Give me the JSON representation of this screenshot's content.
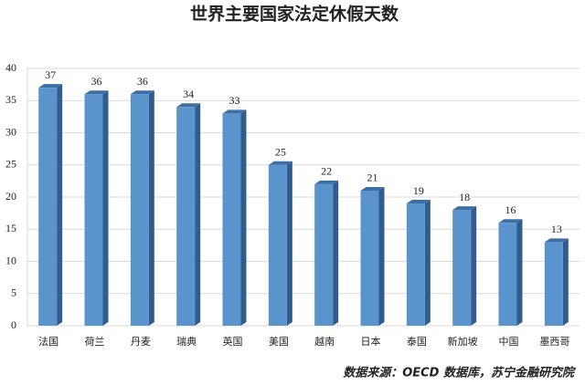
{
  "chart_data": {
    "type": "bar",
    "title": "世界主要国家法定休假天数",
    "source": "数据来源：OECD 数据库，苏宁金融研究院",
    "categories": [
      "法国",
      "荷兰",
      "丹麦",
      "瑞典",
      "英国",
      "美国",
      "越南",
      "日本",
      "泰国",
      "新加坡",
      "中国",
      "墨西哥"
    ],
    "values": [
      37,
      36,
      36,
      34,
      33,
      25,
      22,
      21,
      19,
      18,
      16,
      13
    ],
    "color": "#5b93cc",
    "ylim": [
      0,
      40
    ],
    "yticks": [
      0,
      5,
      10,
      15,
      20,
      25,
      30,
      35,
      40
    ],
    "grid": true
  }
}
